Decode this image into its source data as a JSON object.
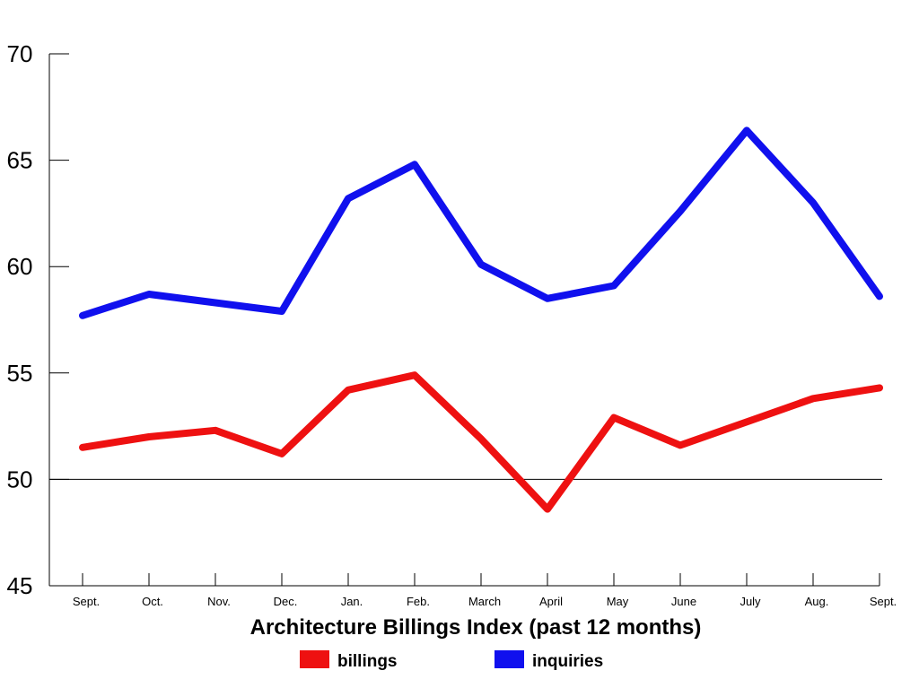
{
  "chart_data": {
    "type": "line",
    "title": "Architecture Billings Index (past 12 months)",
    "xlabel": "Architecture Billings Index (past 12 months)",
    "ylabel": "",
    "categories": [
      "Sept.",
      "Oct.",
      "Nov.",
      "Dec.",
      "Jan.",
      "Feb.",
      "March",
      "April",
      "May",
      "June",
      "July",
      "Aug.",
      "Sept."
    ],
    "yticks": [
      45,
      50,
      55,
      60,
      65,
      70
    ],
    "ylim": [
      45,
      70
    ],
    "reference_line": 50,
    "grid": false,
    "legend_placement": "bottom",
    "series": [
      {
        "name": "billings",
        "color": "#ee1111",
        "values": [
          51.5,
          52.0,
          52.3,
          51.2,
          54.2,
          54.9,
          51.9,
          48.6,
          52.9,
          51.6,
          52.7,
          53.8,
          54.3
        ]
      },
      {
        "name": "inquiries",
        "color": "#1010ee",
        "values": [
          57.7,
          58.7,
          58.3,
          57.9,
          63.2,
          64.8,
          60.1,
          58.5,
          59.1,
          62.6,
          66.4,
          63.0,
          58.6
        ]
      }
    ]
  }
}
